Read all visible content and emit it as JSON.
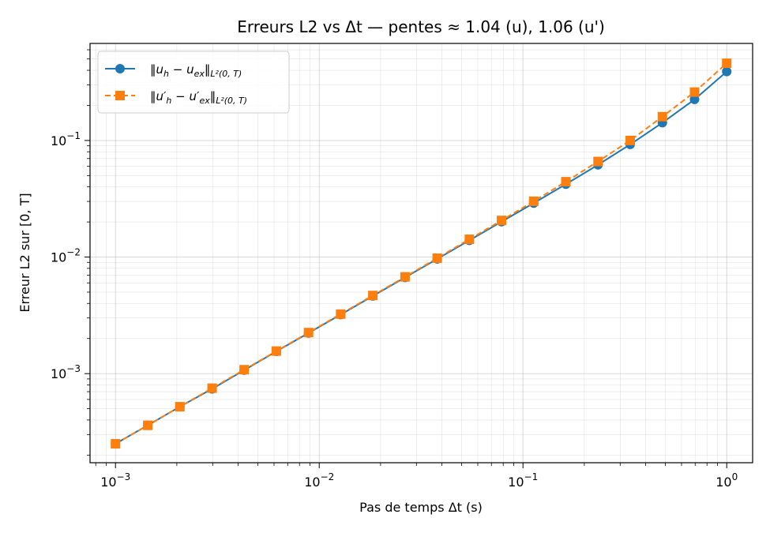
{
  "chart_data": {
    "type": "line",
    "title": "Erreurs L2 vs Δt — pentes ≈ 1.04 (u), 1.06 (u')",
    "xlabel": "Pas de temps Δt (s)",
    "ylabel": "Erreur L2 sur [0, T]",
    "xscale": "log",
    "yscale": "log",
    "xlim": [
      0.00075,
      1.34
    ],
    "ylim": [
      0.000172,
      0.68
    ],
    "grid": true,
    "legend_position": "top-left",
    "x_ticks": [
      {
        "value": 0.001,
        "base": "10",
        "exp": "−3"
      },
      {
        "value": 0.01,
        "base": "10",
        "exp": "−2"
      },
      {
        "value": 0.1,
        "base": "10",
        "exp": "−1"
      },
      {
        "value": 1,
        "base": "10",
        "exp": "0"
      }
    ],
    "y_ticks": [
      {
        "value": 0.001,
        "base": "10",
        "exp": "−3"
      },
      {
        "value": 0.01,
        "base": "10",
        "exp": "−2"
      },
      {
        "value": 0.1,
        "base": "10",
        "exp": "−1"
      }
    ],
    "x": [
      0.001,
      0.00144,
      0.00207,
      0.00298,
      0.00428,
      0.00616,
      0.00886,
      0.01274,
      0.01833,
      0.02637,
      0.03793,
      0.05456,
      0.07848,
      0.11288,
      0.16238,
      0.23357,
      0.33598,
      0.48329,
      0.69519,
      1.0
    ],
    "series": [
      {
        "name": "‖u_h − u_ex‖_{L²(0,T)}",
        "color": "#1f77b4",
        "marker": "circle",
        "linestyle": "solid",
        "values": [
          0.00025,
          0.00036,
          0.00052,
          0.00074,
          0.00107,
          0.00155,
          0.00223,
          0.00321,
          0.00463,
          0.00668,
          0.00963,
          0.0139,
          0.0201,
          0.029,
          0.0422,
          0.0618,
          0.0925,
          0.142,
          0.225,
          0.39
        ]
      },
      {
        "name": "‖u′_h − u′_ex‖_{L²(0,T)}",
        "color": "#ff7f0e",
        "marker": "square",
        "linestyle": "dashed",
        "values": [
          0.00025,
          0.00036,
          0.00052,
          0.00075,
          0.00108,
          0.00156,
          0.00225,
          0.00324,
          0.00468,
          0.00676,
          0.00978,
          0.0142,
          0.0206,
          0.0301,
          0.0443,
          0.066,
          0.1,
          0.16,
          0.26,
          0.46
        ]
      }
    ]
  }
}
